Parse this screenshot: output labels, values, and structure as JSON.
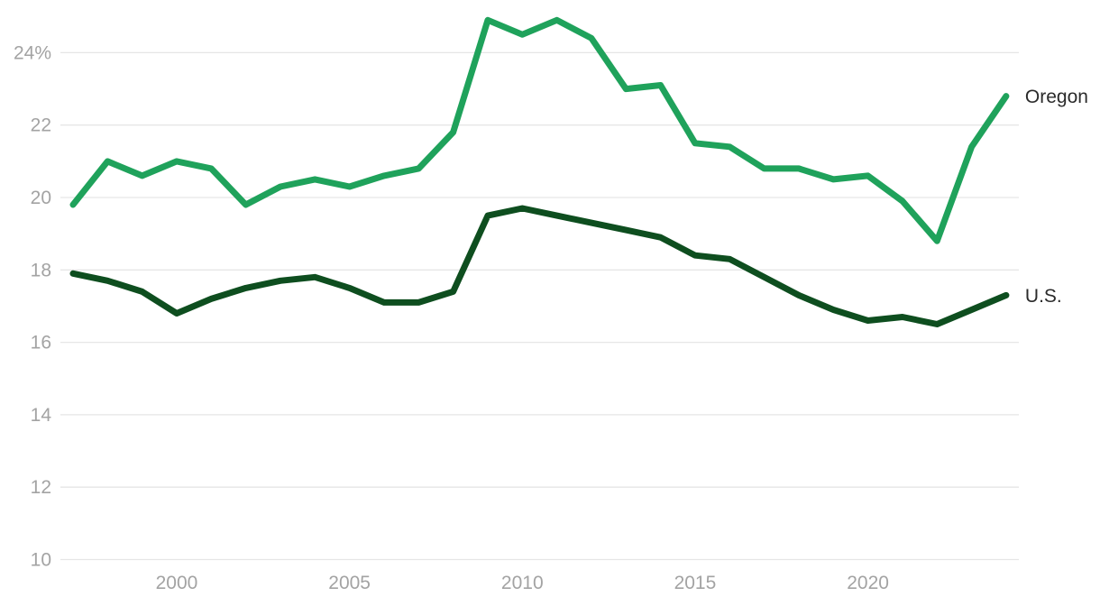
{
  "chart_data": {
    "type": "line",
    "title": "",
    "xlabel": "",
    "ylabel": "",
    "x": [
      1997,
      1998,
      1999,
      2000,
      2001,
      2002,
      2003,
      2004,
      2005,
      2006,
      2007,
      2008,
      2009,
      2010,
      2011,
      2012,
      2013,
      2014,
      2015,
      2016,
      2017,
      2018,
      2019,
      2020,
      2021,
      2022,
      2023,
      2024
    ],
    "series": [
      {
        "name": "Oregon",
        "color": "#1fa25b",
        "values": [
          19.8,
          21.0,
          20.6,
          21.0,
          20.8,
          19.8,
          20.3,
          20.5,
          20.3,
          20.6,
          20.8,
          21.8,
          24.9,
          24.5,
          24.9,
          24.4,
          23.0,
          23.1,
          21.5,
          21.4,
          20.8,
          20.8,
          20.5,
          20.6,
          19.9,
          18.8,
          21.4,
          22.8
        ]
      },
      {
        "name": "U.S.",
        "color": "#0e4e1f",
        "values": [
          17.9,
          17.7,
          17.4,
          16.8,
          17.2,
          17.5,
          17.7,
          17.8,
          17.5,
          17.1,
          17.1,
          17.4,
          19.5,
          19.7,
          19.5,
          19.3,
          19.1,
          18.9,
          18.4,
          18.3,
          17.8,
          17.3,
          16.9,
          16.6,
          16.7,
          16.5,
          16.9,
          17.3
        ]
      }
    ],
    "ylim": [
      10,
      25.2
    ],
    "xlim": [
      1997,
      2024
    ],
    "yticks": [
      {
        "value": 24,
        "label": "24%"
      },
      {
        "value": 22,
        "label": "22"
      },
      {
        "value": 20,
        "label": "20"
      },
      {
        "value": 18,
        "label": "18"
      },
      {
        "value": 16,
        "label": "16"
      },
      {
        "value": 14,
        "label": "14"
      },
      {
        "value": 12,
        "label": "12"
      },
      {
        "value": 10,
        "label": "10"
      }
    ],
    "xticks": [
      {
        "value": 2000,
        "label": "2000"
      },
      {
        "value": 2005,
        "label": "2005"
      },
      {
        "value": 2010,
        "label": "2010"
      },
      {
        "value": 2015,
        "label": "2015"
      },
      {
        "value": 2020,
        "label": "2020"
      }
    ],
    "grid": "horizontal",
    "legend_position": "line-end-labels",
    "colors": {
      "background": "#ffffff",
      "gridline": "#e6e6e6",
      "axis_text": "#a3a3a3",
      "series_label_text": "#2b2b2b"
    }
  }
}
